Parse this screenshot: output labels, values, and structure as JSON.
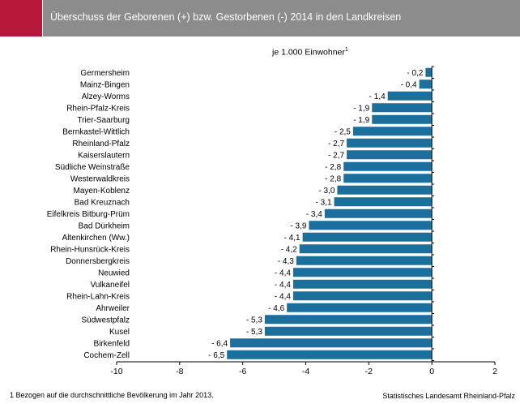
{
  "header": {
    "title": "Überschuss der Geborenen (+) bzw. Gestorbenen (-) 2014 in den Landkreisen"
  },
  "subtitle": "je 1.000 Einwohner",
  "subtitle_sup": "1",
  "footnote": "1 Bezogen auf die durchschnittliche Bevölkerung im Jahr 2013.",
  "source": "Statistisches Landesamt Rheinland-Pfalz",
  "colors": {
    "bar": "#1a6f9d",
    "accent": "#b8173c",
    "header": "#8c8c8c"
  },
  "chart_data": {
    "type": "bar",
    "orientation": "horizontal",
    "title": "Überschuss der Geborenen (+) bzw. Gestorbenen (-) 2014 in den Landkreisen",
    "xlim": [
      -10,
      2
    ],
    "xticks": [
      -10,
      -8,
      -6,
      -4,
      -2,
      0,
      2
    ],
    "xtick_labels": [
      "-10",
      "-8",
      "-6",
      "-4",
      "-2",
      "0",
      "2"
    ],
    "categories": [
      "Germersheim",
      "Mainz-Bingen",
      "Alzey-Worms",
      "Rhein-Pfalz-Kreis",
      "Trier-Saarburg",
      "Bernkastel-Wittlich",
      "Rheinland-Pfalz",
      "Kaiserslautern",
      "Südliche Weinstraße",
      "Westerwaldkreis",
      "Mayen-Koblenz",
      "Bad Kreuznach",
      "Eifelkreis Bitburg-Prüm",
      "Bad Dürkheim",
      "Altenkirchen (Ww.)",
      "Rhein-Hunsrück-Kreis",
      "Donnersbergkreis",
      "Neuwied",
      "Vulkaneifel",
      "Rhein-Lahn-Kreis",
      "Ahrweiler",
      "Südwestpfalz",
      "Kusel",
      "Birkenfeld",
      "Cochem-Zell"
    ],
    "values": [
      -0.2,
      -0.4,
      -1.4,
      -1.9,
      -1.9,
      -2.5,
      -2.7,
      -2.7,
      -2.8,
      -2.8,
      -3.0,
      -3.1,
      -3.4,
      -3.9,
      -4.1,
      -4.2,
      -4.3,
      -4.4,
      -4.4,
      -4.4,
      -4.6,
      -5.3,
      -5.3,
      -6.4,
      -6.5
    ],
    "value_labels": [
      "- 0,2",
      "- 0,4",
      "- 1,4",
      "- 1,9",
      "- 1,9",
      "- 2,5",
      "- 2,7",
      "- 2,7",
      "- 2,8",
      "- 2,8",
      "- 3,0",
      "- 3,1",
      "- 3,4",
      "- 3,9",
      "- 4,1",
      "- 4,2",
      "- 4,3",
      "- 4,4",
      "- 4,4",
      "- 4,4",
      "- 4,6",
      "- 5,3",
      "- 5,3",
      "- 6,4",
      "- 6,5"
    ],
    "grid": false,
    "legend": "none"
  }
}
